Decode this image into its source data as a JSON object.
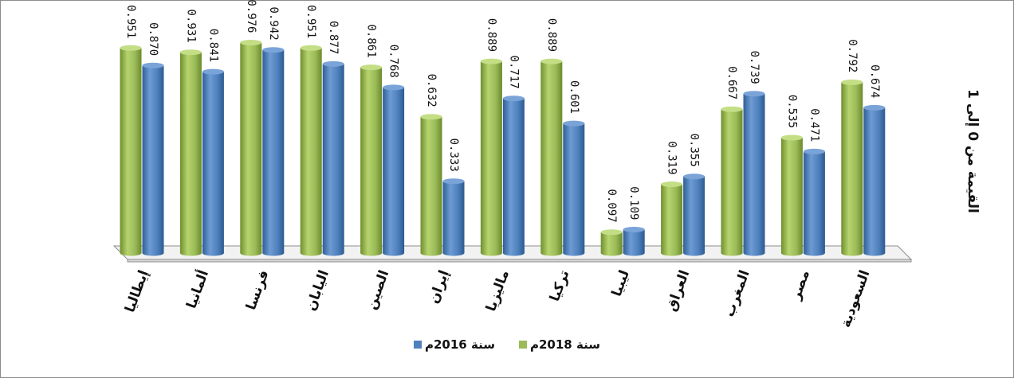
{
  "chart_data": {
    "type": "bar",
    "categories": [
      "إيطاليا",
      "ألمانيا",
      "فرنسا",
      "اليابان",
      "الصين",
      "إيران",
      "ماليزيا",
      "تركيا",
      "ليبيا",
      "العراق",
      "المغرب",
      "مصر",
      "السعودية"
    ],
    "series": [
      {
        "name": "سنة 2018م",
        "color": "#9bbb59",
        "values": [
          0.951,
          0.931,
          0.976,
          0.951,
          0.861,
          0.632,
          0.889,
          0.889,
          0.097,
          0.319,
          0.667,
          0.535,
          0.792
        ],
        "labels": [
          "0.951",
          "0.931",
          "0.976",
          "0.951",
          "0.861",
          "0.632",
          "0.889",
          "0.889",
          "0.097",
          "0.319",
          "0.667",
          "0.535",
          "0.792"
        ]
      },
      {
        "name": "سنة 2016م",
        "color": "#4f81bd",
        "values": [
          0.87,
          0.841,
          0.942,
          0.877,
          0.768,
          0.333,
          0.717,
          0.601,
          0.109,
          0.355,
          0.739,
          0.471,
          0.674
        ],
        "labels": [
          "0.870",
          "0.841",
          "0.942",
          "0.877",
          "0.768",
          "0.333",
          "0.717",
          "0.601",
          "0.109",
          "0.355",
          "0.739",
          "0.471",
          "0.674"
        ]
      }
    ],
    "ylabel": "القيمة من 0 إلى 1",
    "ylim": [
      0,
      1
    ],
    "grid": false,
    "legend_position": "bottom"
  }
}
